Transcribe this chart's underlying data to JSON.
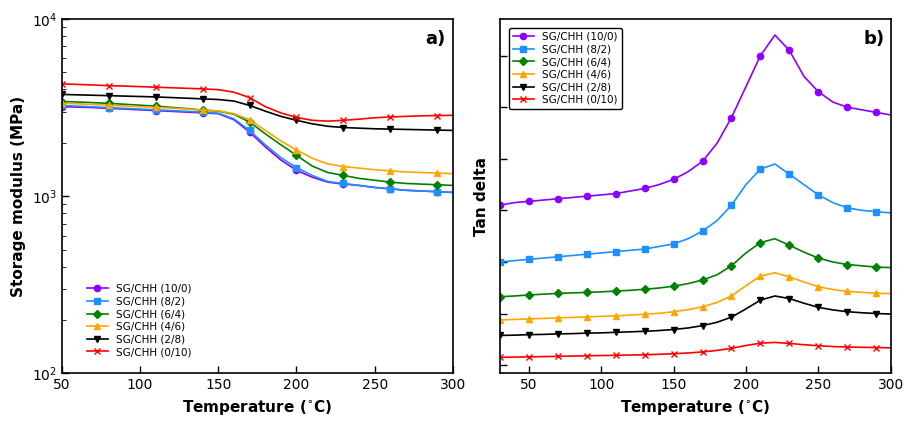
{
  "series_labels": [
    "SG/CHH (10/0)",
    "SG/CHH (8/2)",
    "SG/CHH (6/4)",
    "SG/CHH (4/6)",
    "SG/CHH (2/8)",
    "SG/CHH (0/10)"
  ],
  "colors": [
    "#8B00FF",
    "#1E90FF",
    "#008000",
    "#FFA500",
    "#000000",
    "#FF0000"
  ],
  "markers_a": [
    "o",
    "s",
    "D",
    "^",
    "v",
    "x"
  ],
  "markers_b": [
    "o",
    "s",
    "D",
    "^",
    "v",
    "x"
  ],
  "temp_a": [
    50,
    60,
    70,
    80,
    90,
    100,
    110,
    120,
    130,
    140,
    150,
    160,
    170,
    180,
    190,
    200,
    210,
    220,
    230,
    240,
    250,
    260,
    270,
    280,
    290,
    300
  ],
  "storage_modulus": {
    "10/0": [
      3200,
      3180,
      3160,
      3130,
      3100,
      3070,
      3040,
      3010,
      2980,
      2950,
      2920,
      2700,
      2300,
      1900,
      1600,
      1400,
      1280,
      1200,
      1170,
      1150,
      1120,
      1100,
      1080,
      1070,
      1060,
      1050
    ],
    "8/2": [
      3250,
      3220,
      3190,
      3160,
      3130,
      3100,
      3070,
      3040,
      3010,
      2980,
      2940,
      2730,
      2350,
      1950,
      1650,
      1450,
      1310,
      1210,
      1180,
      1150,
      1120,
      1100,
      1080,
      1070,
      1060,
      1050
    ],
    "6/4": [
      3420,
      3400,
      3370,
      3340,
      3300,
      3260,
      3220,
      3170,
      3120,
      3060,
      3020,
      2900,
      2620,
      2250,
      1950,
      1700,
      1480,
      1360,
      1310,
      1260,
      1230,
      1200,
      1180,
      1170,
      1160,
      1150
    ],
    "4/6": [
      3350,
      3320,
      3290,
      3260,
      3230,
      3200,
      3170,
      3140,
      3100,
      3060,
      3030,
      2920,
      2700,
      2350,
      2050,
      1820,
      1640,
      1520,
      1470,
      1440,
      1410,
      1390,
      1370,
      1360,
      1350,
      1340
    ],
    "2/8": [
      3750,
      3730,
      3710,
      3690,
      3670,
      3650,
      3630,
      3600,
      3570,
      3540,
      3510,
      3440,
      3250,
      3020,
      2820,
      2680,
      2560,
      2480,
      2440,
      2420,
      2400,
      2390,
      2380,
      2370,
      2360,
      2350
    ],
    "0/10": [
      4300,
      4270,
      4240,
      4200,
      4180,
      4150,
      4120,
      4090,
      4060,
      4030,
      3990,
      3860,
      3600,
      3200,
      2950,
      2780,
      2680,
      2650,
      2680,
      2720,
      2770,
      2800,
      2820,
      2840,
      2850,
      2860
    ]
  },
  "temp_b": [
    30,
    40,
    50,
    60,
    70,
    80,
    90,
    100,
    110,
    120,
    130,
    140,
    150,
    160,
    170,
    180,
    190,
    200,
    210,
    220,
    230,
    240,
    250,
    260,
    270,
    280,
    290,
    300
  ],
  "tan_delta": {
    "10/0": [
      0.62,
      0.63,
      0.635,
      0.64,
      0.645,
      0.65,
      0.655,
      0.66,
      0.665,
      0.675,
      0.685,
      0.7,
      0.72,
      0.75,
      0.79,
      0.86,
      0.96,
      1.08,
      1.2,
      1.28,
      1.22,
      1.12,
      1.06,
      1.02,
      1.0,
      0.99,
      0.98,
      0.97
    ],
    "8/2": [
      0.4,
      0.405,
      0.41,
      0.415,
      0.42,
      0.425,
      0.43,
      0.435,
      0.44,
      0.445,
      0.45,
      0.46,
      0.47,
      0.49,
      0.52,
      0.56,
      0.62,
      0.7,
      0.76,
      0.78,
      0.74,
      0.7,
      0.66,
      0.63,
      0.61,
      0.6,
      0.595,
      0.59
    ],
    "6/4": [
      0.265,
      0.268,
      0.272,
      0.275,
      0.278,
      0.28,
      0.282,
      0.284,
      0.287,
      0.29,
      0.294,
      0.299,
      0.306,
      0.316,
      0.33,
      0.35,
      0.385,
      0.435,
      0.475,
      0.49,
      0.465,
      0.438,
      0.415,
      0.4,
      0.39,
      0.385,
      0.38,
      0.378
    ],
    "4/6": [
      0.175,
      0.177,
      0.179,
      0.181,
      0.183,
      0.185,
      0.187,
      0.189,
      0.191,
      0.194,
      0.197,
      0.201,
      0.207,
      0.215,
      0.226,
      0.243,
      0.268,
      0.308,
      0.345,
      0.358,
      0.342,
      0.322,
      0.304,
      0.293,
      0.286,
      0.282,
      0.279,
      0.277
    ],
    "2/8": [
      0.115,
      0.116,
      0.118,
      0.119,
      0.121,
      0.122,
      0.124,
      0.125,
      0.127,
      0.129,
      0.131,
      0.134,
      0.138,
      0.144,
      0.153,
      0.166,
      0.186,
      0.218,
      0.252,
      0.268,
      0.258,
      0.24,
      0.224,
      0.214,
      0.207,
      0.203,
      0.2,
      0.198
    ],
    "0/10": [
      0.03,
      0.031,
      0.032,
      0.033,
      0.034,
      0.035,
      0.036,
      0.037,
      0.038,
      0.039,
      0.04,
      0.042,
      0.044,
      0.047,
      0.051,
      0.057,
      0.065,
      0.076,
      0.085,
      0.088,
      0.084,
      0.079,
      0.075,
      0.072,
      0.07,
      0.069,
      0.068,
      0.067
    ]
  },
  "xlabel": "Temperature ($^{\\circ}$C)",
  "ylabel_a": "Storage modulus (MPa)",
  "ylabel_b": "Tan delta",
  "label_a": "a)",
  "label_b": "b)"
}
